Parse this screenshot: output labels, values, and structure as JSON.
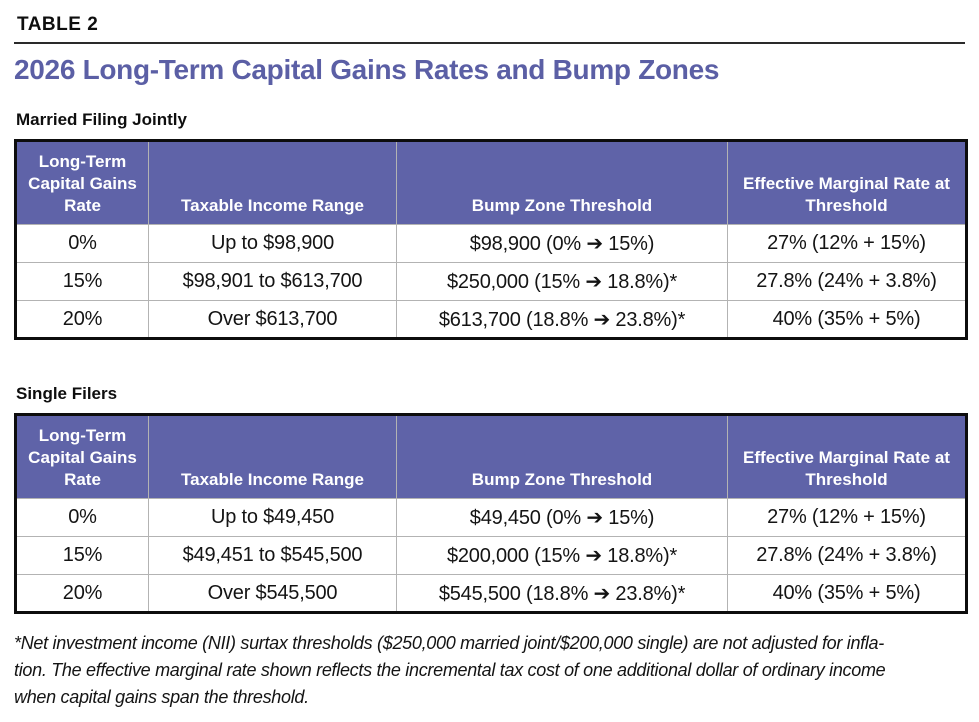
{
  "page": {
    "kicker": "TABLE 2",
    "title": "2026 Long-Term Capital Gains Rates and Bump Zones"
  },
  "colors": {
    "accent_purple": "#5f63a8",
    "title_purple": "#5b5fa5",
    "header_text": "#ffffff",
    "grid_line": "#b3b3b3",
    "outer_border": "#0d0d0d"
  },
  "columns": [
    "Long-Term Capital Gains Rate",
    "Taxable Income Range",
    "Bump Zone Threshold",
    "Effective Marginal Rate at Threshold"
  ],
  "tables": [
    {
      "label": "Married Filing Jointly",
      "rows": [
        [
          "0%",
          "Up to $98,900",
          "$98,900 (0% ➔ 15%)",
          "27% (12% + 15%)"
        ],
        [
          "15%",
          "$98,901 to $613,700",
          "$250,000 (15% ➔ 18.8%)*",
          "27.8% (24% + 3.8%)"
        ],
        [
          "20%",
          "Over $613,700",
          "$613,700 (18.8% ➔ 23.8%)*",
          "40% (35% + 5%)"
        ]
      ]
    },
    {
      "label": "Single Filers",
      "rows": [
        [
          "0%",
          "Up to $49,450",
          "$49,450 (0% ➔ 15%)",
          "27% (12% + 15%)"
        ],
        [
          "15%",
          "$49,451 to $545,500",
          "$200,000 (15% ➔ 18.8%)*",
          "27.8% (24% + 3.8%)"
        ],
        [
          "20%",
          "Over $545,500",
          "$545,500 (18.8% ➔ 23.8%)*",
          "40% (35% + 5%)"
        ]
      ]
    }
  ],
  "footnote": {
    "lines": [
      "*Net investment income (NII) surtax thresholds ($250,000 married joint/$200,000 single) are not adjusted for infla-",
      "tion. The effective marginal rate shown reflects the incremental tax cost of one additional dollar of ordinary income",
      "when capital gains span the threshold."
    ]
  }
}
